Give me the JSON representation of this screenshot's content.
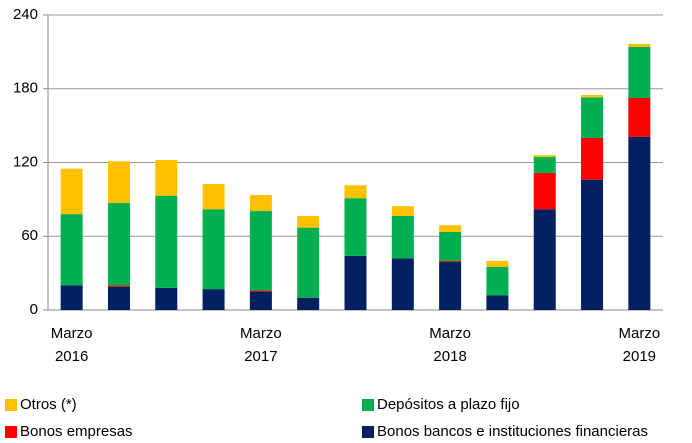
{
  "chart_data": {
    "type": "stacked_bar",
    "categories": [
      "Marzo\n2016",
      null,
      null,
      null,
      "Marzo\n2017",
      null,
      null,
      null,
      "Marzo\n2018",
      null,
      null,
      null,
      "Marzo\n2019"
    ],
    "series": [
      {
        "name": "Bonos bancos e instituciones financieras",
        "color": "#002060",
        "values": [
          20,
          19,
          18,
          17,
          15,
          10,
          44,
          42,
          39,
          12,
          82,
          106,
          141
        ]
      },
      {
        "name": "Bonos empresas",
        "color": "#ff0000",
        "values": [
          0,
          1,
          0,
          0,
          1,
          0,
          0,
          0,
          1,
          0,
          29.5,
          34,
          31.5
        ]
      },
      {
        "name": "Depósitos a plazo fijo",
        "color": "#00b050",
        "values": [
          58,
          67,
          75,
          65,
          64.5,
          57,
          47,
          34.5,
          23.5,
          23,
          13,
          33,
          41.5
        ]
      },
      {
        "name": "Otros (*)",
        "color": "#ffc000",
        "values": [
          37,
          34,
          29,
          20.5,
          13,
          9.5,
          10.5,
          8,
          5.5,
          5,
          1.5,
          2,
          2.5
        ]
      }
    ],
    "ylim": [
      0,
      240
    ],
    "yticks": [
      0,
      60,
      120,
      180,
      240
    ],
    "grid": true
  }
}
